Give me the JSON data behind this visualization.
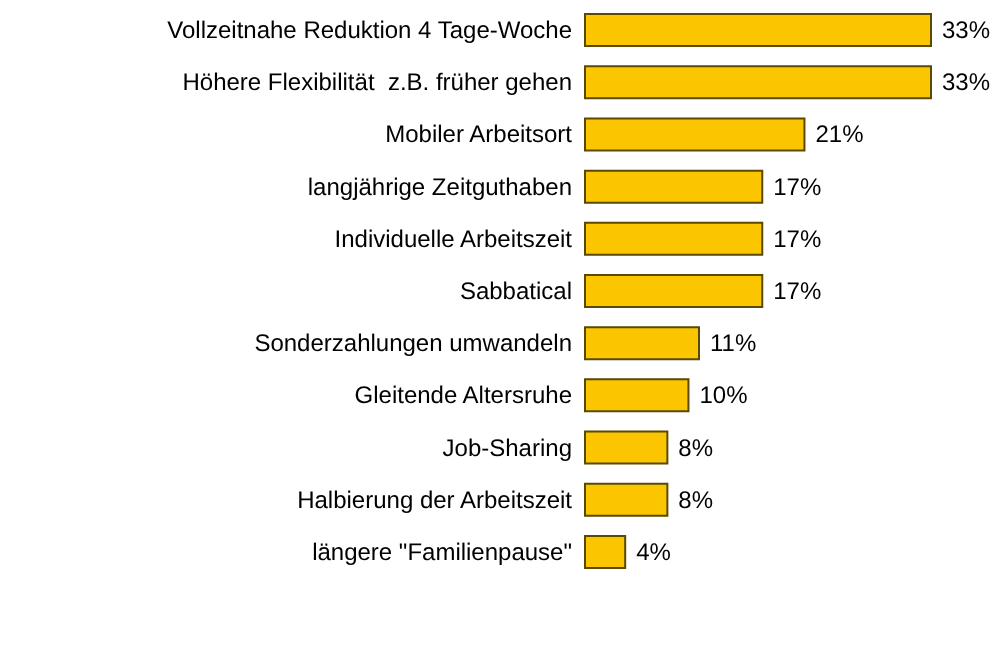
{
  "chart_data": {
    "type": "bar",
    "orientation": "horizontal",
    "color": "#fbc500",
    "value_labels": [
      "33%",
      "33%",
      "21%",
      "17%",
      "17%",
      "17%",
      "11%",
      "10%",
      "8%",
      "8%",
      "4%"
    ],
    "categories": [
      "Vollzeitnahe Reduktion 4 Tage-Woche",
      "Höhere Flexibilität  z.B. früher gehen",
      "Mobiler Arbeitsort",
      "langjährige Zeitguthaben",
      "Individuelle Arbeitszeit",
      "Sabbatical",
      "Sonderzahlungen umwandeln",
      "Gleitende Altersruhe",
      "Job-Sharing",
      "Halbierung der Arbeitszeit",
      "längere \"Familienpause\""
    ],
    "values": [
      33,
      33,
      21,
      17,
      17,
      17,
      11,
      10,
      8,
      8,
      4
    ]
  }
}
